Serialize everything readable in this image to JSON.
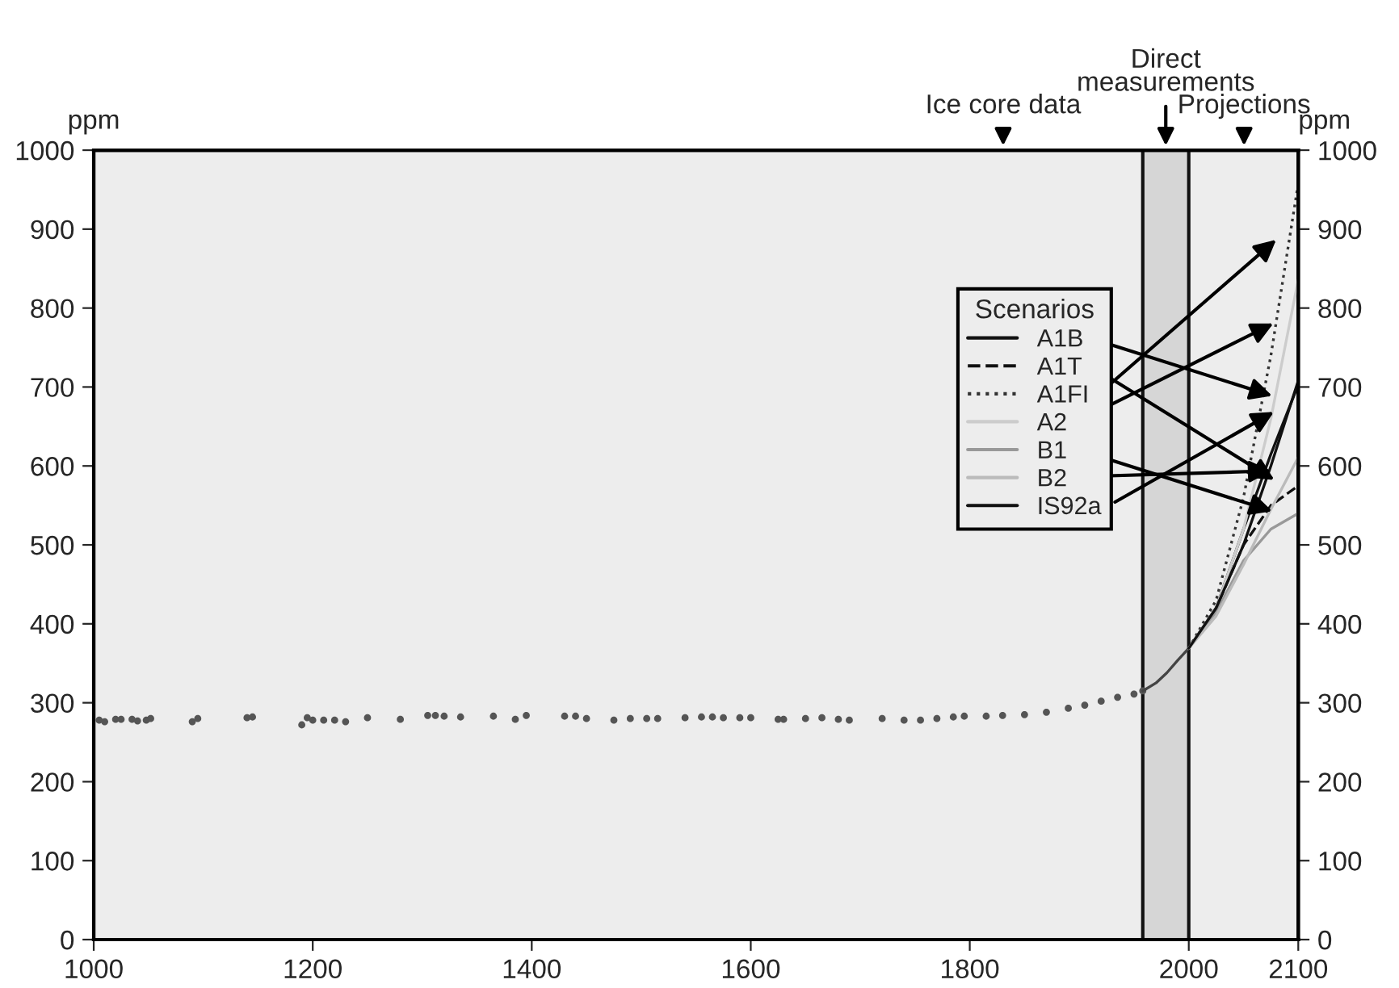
{
  "chart_data": {
    "type": "line",
    "ylabel": "ppm",
    "y2label": "ppm",
    "legend_title": "Scenarios",
    "xlim": [
      1000,
      2100
    ],
    "xticks": [
      1000,
      1200,
      1400,
      1600,
      1800,
      2000,
      2100
    ],
    "ylim": [
      0,
      1000
    ],
    "yticks": [
      0,
      100,
      200,
      300,
      400,
      500,
      600,
      700,
      800,
      900,
      1000
    ],
    "y2lim": [
      0,
      1000
    ],
    "y2ticks": [
      0,
      100,
      200,
      300,
      400,
      500,
      600,
      700,
      800,
      900,
      1000
    ],
    "grid": false,
    "legend": "top right",
    "annotations": [
      "Ice core data",
      "Direct\nmeasurements",
      "Projections"
    ],
    "ref_lines": [
      {
        "axis": "x",
        "value": 1958,
        "color": "#111111"
      },
      {
        "axis": "x",
        "value": 2000,
        "color": "#111111"
      }
    ],
    "bands": [
      {
        "axis": "x",
        "from": 1958,
        "to": 2000,
        "color": "#d6d6d6"
      }
    ],
    "series": [
      {
        "type": "scatter",
        "color": "#555555",
        "marker": "circle",
        "x": [
          1005,
          1010,
          1020,
          1025,
          1035,
          1040,
          1048,
          1052,
          1090,
          1095,
          1140,
          1145,
          1190,
          1195,
          1200,
          1210,
          1220,
          1230,
          1250,
          1280,
          1305,
          1312,
          1320,
          1335,
          1365,
          1385,
          1395,
          1430,
          1440,
          1450,
          1475,
          1490,
          1505,
          1515,
          1540,
          1555,
          1565,
          1575,
          1590,
          1600,
          1625,
          1630,
          1650,
          1665,
          1680,
          1690,
          1720,
          1740,
          1755,
          1770,
          1785,
          1795,
          1815,
          1830,
          1850,
          1870,
          1890,
          1905,
          1920,
          1935,
          1950,
          1958
        ],
        "values": [
          278,
          276,
          279,
          279,
          279,
          277,
          278,
          280,
          276,
          280,
          281,
          282,
          272,
          281,
          278,
          278,
          278,
          276,
          281,
          279,
          284,
          284,
          283,
          282,
          283,
          279,
          284,
          283,
          283,
          280,
          278,
          280,
          280,
          280,
          281,
          282,
          282,
          281,
          281,
          281,
          279,
          279,
          280,
          281,
          279,
          278,
          280,
          278,
          278,
          280,
          282,
          283,
          283,
          284,
          285,
          288,
          293,
          297,
          302,
          307,
          311,
          315
        ]
      },
      {
        "type": "line",
        "color": "#444444",
        "line_style": "solid",
        "x": [
          1958,
          1970,
          1980,
          1990,
          2000
        ],
        "values": [
          315,
          325,
          338,
          354,
          369
        ]
      },
      {
        "name": "A1B",
        "color": "#111111",
        "line_style": "solid",
        "x": [
          2000,
          2025,
          2050,
          2075,
          2100
        ],
        "values": [
          369,
          420,
          520,
          615,
          703
        ]
      },
      {
        "name": "A1T",
        "color": "#111111",
        "line_style": "dashed",
        "x": [
          2000,
          2025,
          2050,
          2075,
          2100
        ],
        "values": [
          369,
          420,
          500,
          550,
          575
        ]
      },
      {
        "name": "A1FI",
        "color": "#333333",
        "line_style": "dotted",
        "x": [
          2000,
          2025,
          2050,
          2075,
          2100
        ],
        "values": [
          369,
          430,
          560,
          740,
          958
        ]
      },
      {
        "name": "A2",
        "color": "#cccccc",
        "line_style": "solid",
        "x": [
          2000,
          2025,
          2050,
          2075,
          2100
        ],
        "values": [
          369,
          420,
          520,
          660,
          836
        ]
      },
      {
        "name": "B1",
        "color": "#999999",
        "line_style": "solid",
        "x": [
          2000,
          2025,
          2050,
          2075,
          2100
        ],
        "values": [
          369,
          415,
          480,
          520,
          540
        ]
      },
      {
        "name": "B2",
        "color": "#bbbbbb",
        "line_style": "solid",
        "x": [
          2000,
          2025,
          2050,
          2075,
          2100
        ],
        "values": [
          369,
          410,
          475,
          545,
          611
        ]
      },
      {
        "name": "IS92a",
        "color": "#111111",
        "line_style": "solid",
        "x": [
          2000,
          2025,
          2050,
          2075,
          2100
        ],
        "values": [
          369,
          420,
          500,
          600,
          708
        ]
      }
    ]
  }
}
